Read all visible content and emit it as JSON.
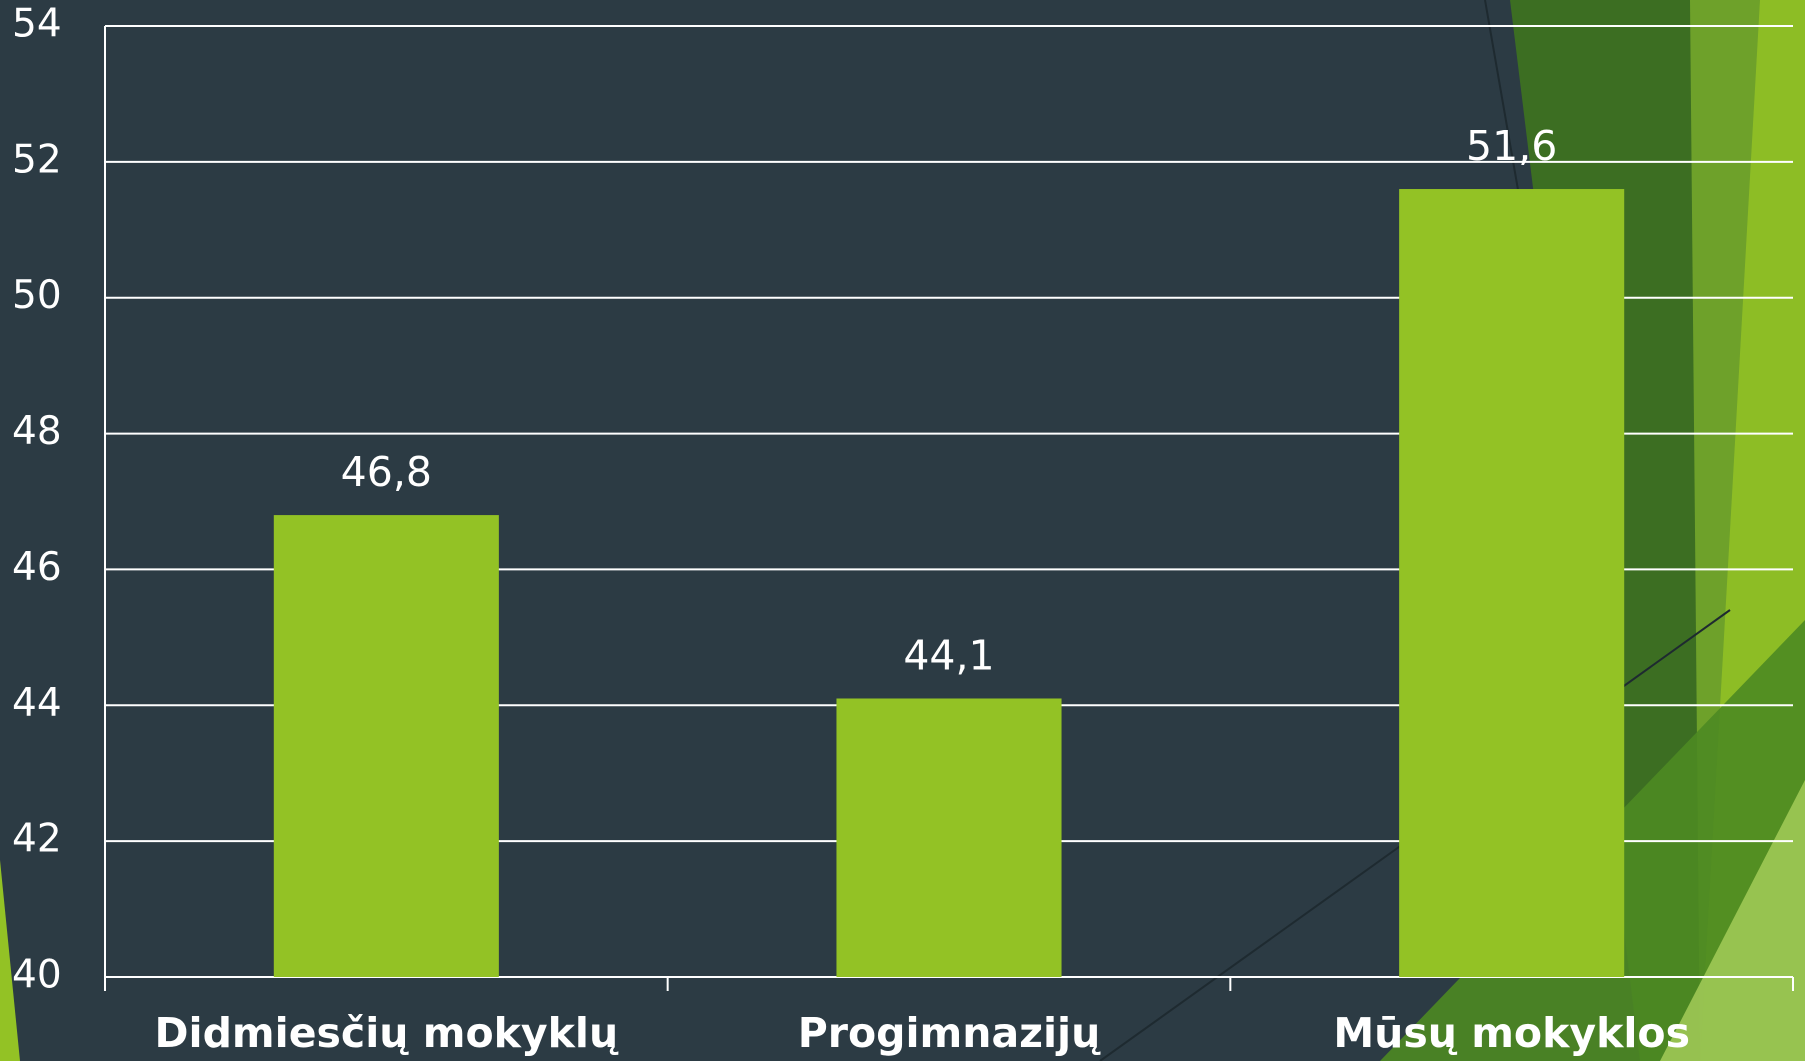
{
  "chart_data": {
    "type": "bar",
    "categories": [
      "Didmiesčių mokyklų",
      "Progimnazijų",
      "Mūsų mokyklos"
    ],
    "values": [
      46.8,
      44.1,
      51.6
    ],
    "value_labels": [
      "46,8",
      "44,1",
      "51,6"
    ],
    "color": "#93c225",
    "ylim": [
      40,
      54
    ],
    "yticks": [
      40,
      42,
      44,
      46,
      48,
      50,
      52,
      54
    ],
    "grid": true
  }
}
